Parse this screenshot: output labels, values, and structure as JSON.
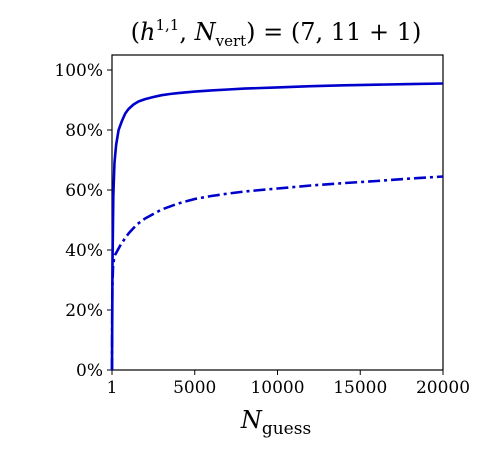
{
  "chart_data": {
    "type": "line",
    "title": "(h¹ʹ¹, Nᵥₑᵣₜ) = (7, 11 + 1)",
    "xlabel": "N_guess",
    "ylabel": "",
    "xlim": [
      1,
      20000
    ],
    "ylim": [
      0,
      105
    ],
    "x_ticks": [
      1,
      5000,
      10000,
      15000,
      20000
    ],
    "x_tick_labels": [
      "1",
      "5000",
      "10000",
      "15000",
      "20000"
    ],
    "y_ticks": [
      0,
      20,
      40,
      60,
      80,
      100
    ],
    "y_tick_labels": [
      "0%",
      "20%",
      "40%",
      "60%",
      "80%",
      "100%"
    ],
    "grid": false,
    "legend": "none",
    "series": [
      {
        "style": "solid",
        "color": "#0000cc",
        "x": [
          1,
          30,
          80,
          150,
          250,
          400,
          600,
          800,
          1000,
          1300,
          1600,
          2000,
          2500,
          3000,
          3500,
          4000,
          5000,
          6000,
          7000,
          8000,
          10000,
          12000,
          14000,
          16000,
          18000,
          20000
        ],
        "y": [
          0,
          35,
          58,
          69,
          75,
          80,
          83,
          85.5,
          87,
          88.5,
          89.5,
          90.3,
          91,
          91.6,
          92,
          92.3,
          92.8,
          93.2,
          93.5,
          93.8,
          94.2,
          94.6,
          94.9,
          95.1,
          95.3,
          95.5
        ]
      },
      {
        "style": "dashdot",
        "color": "#0000cc",
        "x": [
          1,
          20,
          60,
          120,
          200,
          300,
          500,
          800,
          1000,
          1500,
          2000,
          2500,
          3000,
          4000,
          5000,
          6000,
          7000,
          8000,
          10000,
          12000,
          14000,
          16000,
          18000,
          20000
        ],
        "y": [
          0,
          27,
          34,
          37,
          38.5,
          39.5,
          41.5,
          44,
          45.5,
          48.5,
          50.5,
          52,
          53.5,
          55.5,
          57,
          58,
          58.8,
          59.5,
          60.5,
          61.5,
          62.3,
          63,
          63.8,
          64.5
        ]
      }
    ]
  }
}
